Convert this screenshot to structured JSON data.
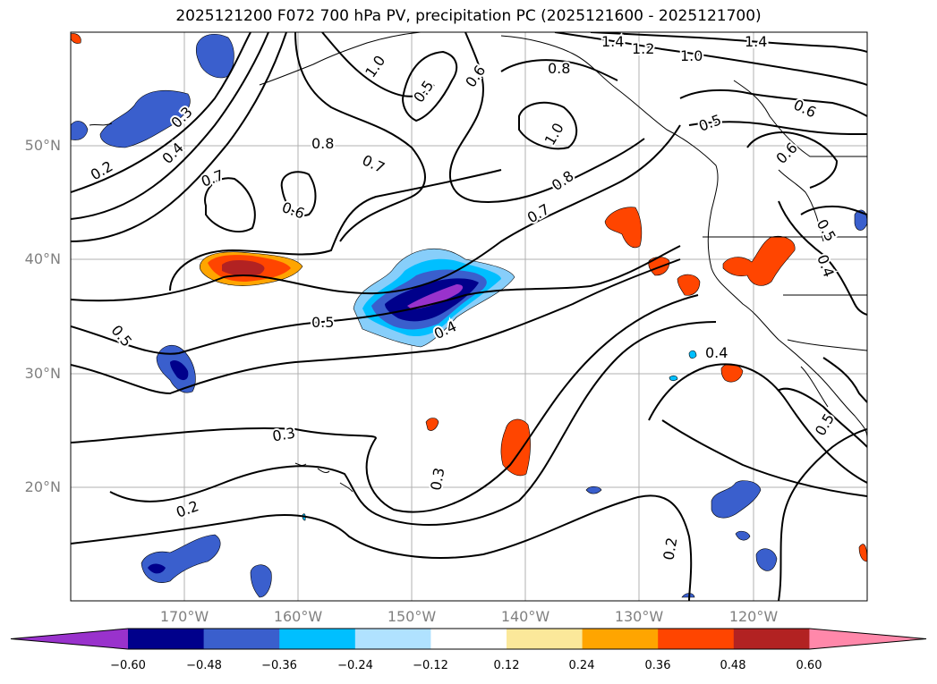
{
  "title": "2025121200 F072 700 hPa PV, precipitation PC (2025121600 - 2025121700)",
  "map": {
    "lon_range": [
      -180,
      -110
    ],
    "lat_range": [
      10,
      60
    ],
    "grid": true,
    "lat_labels": [
      "50°N",
      "40°N",
      "30°N",
      "20°N"
    ],
    "lon_labels": [
      "170°W",
      "160°W",
      "150°W",
      "140°W",
      "130°W",
      "120°W"
    ]
  },
  "contour_labels": [
    "1.4",
    "1.2",
    "1.0",
    "1.4",
    "1.0",
    "0.8",
    "0.6",
    "0.5",
    "0.3",
    "0.4",
    "0.2",
    "0.8",
    "0.7",
    "0.7",
    "0.6",
    "1.0",
    "0.8",
    "0.7",
    "0.5",
    "0.6",
    "0.6",
    "0.5",
    "0.5",
    "0.5",
    "0.4",
    "0.4",
    "0.3",
    "0.3",
    "0.2",
    "0.4",
    "0.5",
    "0.2"
  ],
  "colorbar": {
    "ticks": [
      "−0.60",
      "−0.48",
      "−0.36",
      "−0.24",
      "−0.12",
      "0.12",
      "0.24",
      "0.36",
      "0.48",
      "0.60"
    ],
    "colors": [
      "#9932cc",
      "#00008b",
      "#3a5fcd",
      "#00bfff",
      "#b0e2ff",
      "#ffffff",
      "#fbe89a",
      "#ffa500",
      "#ff4500",
      "#b22222",
      "#ff88aa"
    ]
  }
}
